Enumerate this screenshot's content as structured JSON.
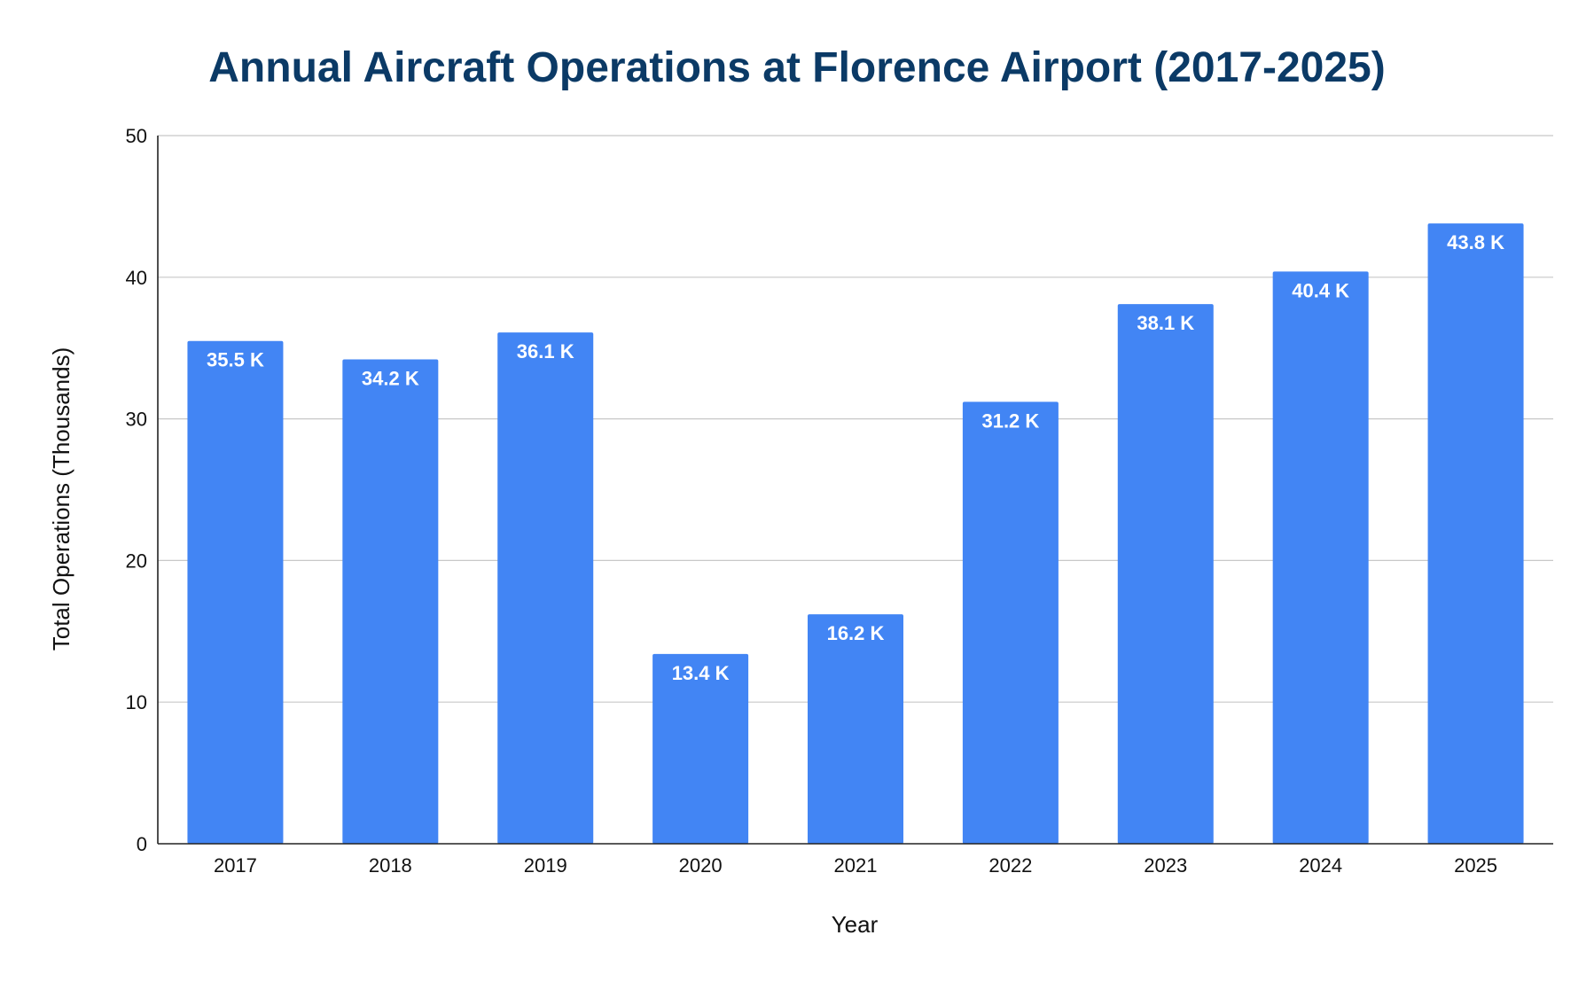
{
  "chart_data": {
    "type": "bar",
    "title": "Annual Aircraft Operations at Florence Airport (2017-2025)",
    "xlabel": "Year",
    "ylabel": "Total Operations (Thousands)",
    "categories": [
      "2017",
      "2018",
      "2019",
      "2020",
      "2021",
      "2022",
      "2023",
      "2024",
      "2025"
    ],
    "values": [
      35.5,
      34.2,
      36.1,
      13.4,
      16.2,
      31.2,
      38.1,
      40.4,
      43.8
    ],
    "data_labels": [
      "35.5 K",
      "34.2 K",
      "36.1 K",
      "13.4 K",
      "16.2 K",
      "31.2 K",
      "38.1 K",
      "40.4 K",
      "43.8 K"
    ],
    "ylim": [
      0,
      50
    ],
    "yticks": [
      "0",
      "10",
      "20",
      "30",
      "40",
      "50"
    ],
    "grid": true,
    "legend": "none",
    "colors": {
      "bar": "#4285f4",
      "title": "#0b3a66"
    }
  }
}
